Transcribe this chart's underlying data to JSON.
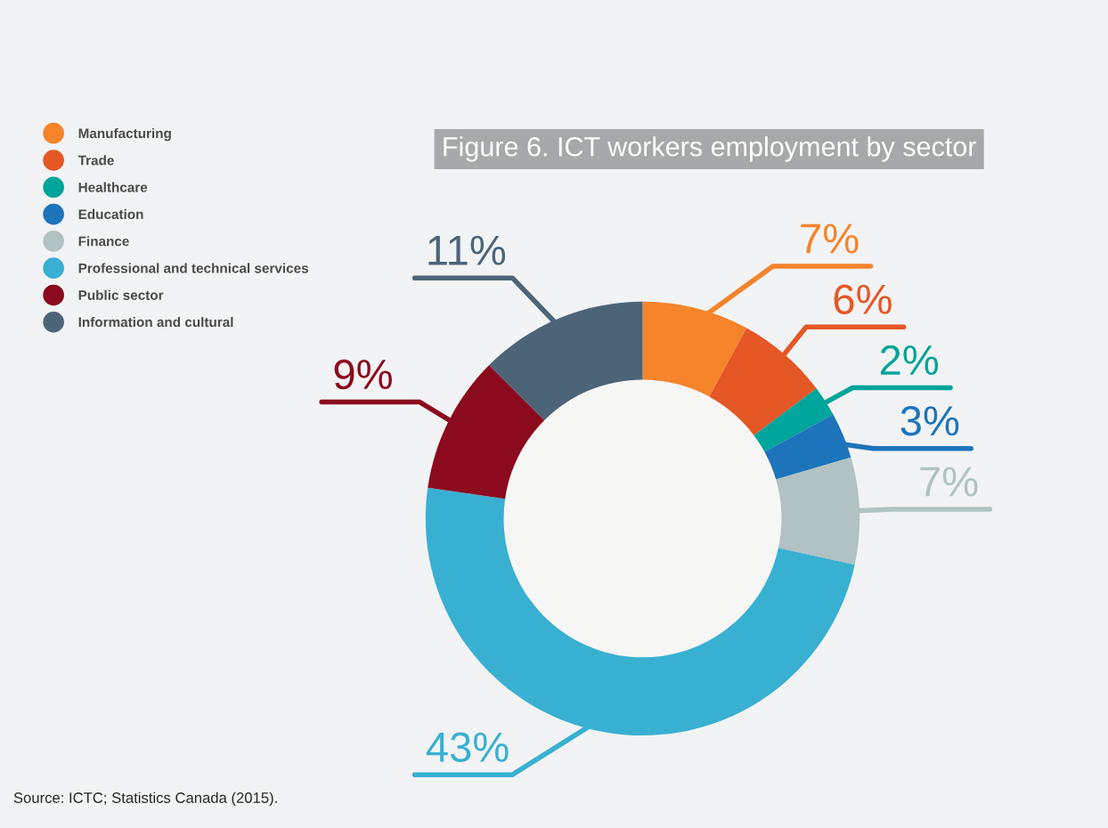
{
  "chart_data": {
    "type": "donut",
    "title": "Figure 6. ICT workers employment by sector",
    "categories": [
      "Manufacturing",
      "Trade",
      "Healthcare",
      "Education",
      "Finance",
      "Professional and technical services",
      "Public sector",
      "Information and cultural"
    ],
    "values": [
      7,
      6,
      2,
      3,
      7,
      43,
      9,
      11
    ],
    "colors": [
      "#f5842b",
      "#e55725",
      "#00a59b",
      "#1d74bb",
      "#b0c2c1",
      "#38b0d2",
      "#8c0a1e",
      "#4c6478"
    ],
    "value_labels": [
      "7%",
      "6%",
      "2%",
      "3%",
      "7%",
      "43%",
      "9%",
      "11%"
    ],
    "legend": "top left",
    "annotations": [
      "Source: ICTC; Statistics Canada (2015)."
    ]
  }
}
